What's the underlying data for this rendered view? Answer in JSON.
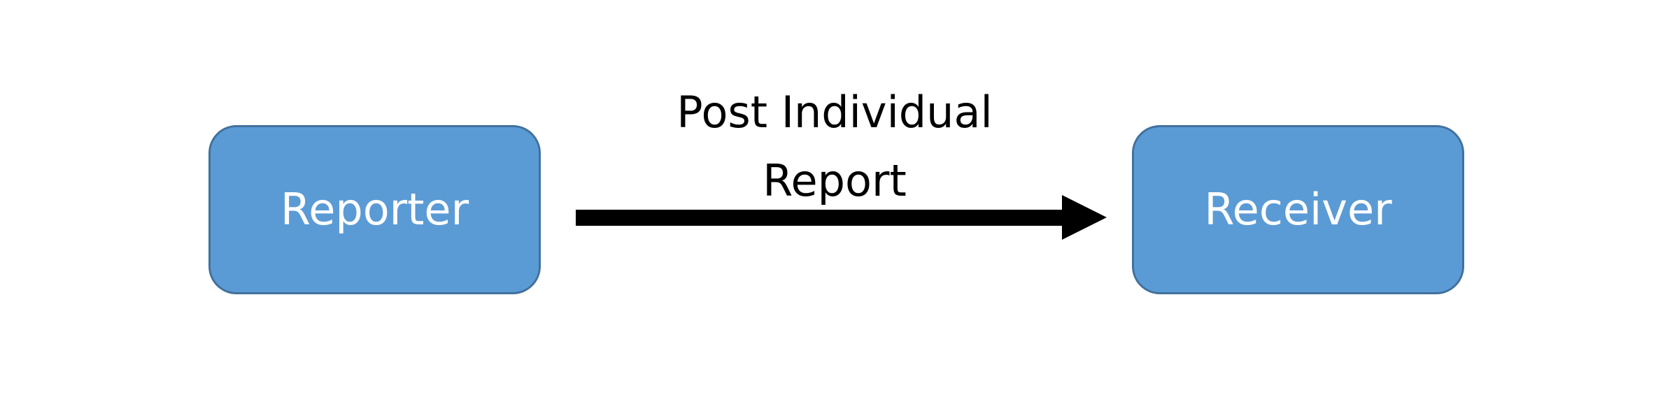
{
  "diagram": {
    "nodes": [
      {
        "id": "reporter",
        "label": "Reporter"
      },
      {
        "id": "receiver",
        "label": "Receiver"
      }
    ],
    "edges": [
      {
        "from": "reporter",
        "to": "receiver",
        "label_lines": [
          "Post Individual",
          "Report"
        ]
      }
    ]
  },
  "colors": {
    "node_fill": "#5b9bd5",
    "node_border": "#41719c",
    "node_text": "#ffffff",
    "arrow": "#000000",
    "edge_text": "#000000"
  }
}
